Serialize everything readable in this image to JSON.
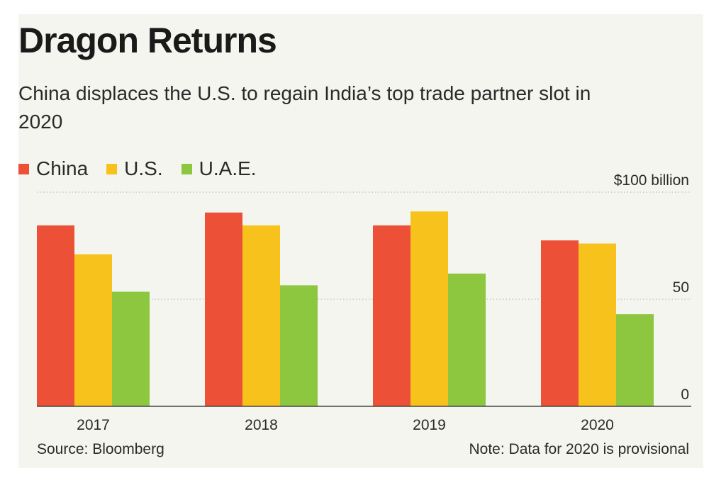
{
  "title": "Dragon Returns",
  "subtitle": "China displaces the U.S. to regain India’s top trade partner slot in 2020",
  "colors": {
    "china": "#ec5138",
    "us": "#f8c21c",
    "uae": "#8dc63f",
    "background": "#f5f5ef",
    "gridline": "#bdbdb5",
    "axis": "#444444"
  },
  "footer": {
    "source": "Source: Bloomberg",
    "note": "Note: Data for 2020 is provisional"
  },
  "chart_data": {
    "type": "bar",
    "title": "Dragon Returns",
    "subtitle": "China displaces the U.S. to regain India’s top trade partner slot in 2020",
    "categories": [
      "2017",
      "2018",
      "2019",
      "2020"
    ],
    "series": [
      {
        "name": "China",
        "values": [
          84.5,
          90.5,
          84.5,
          77.5
        ]
      },
      {
        "name": "U.S.",
        "values": [
          71,
          84.5,
          91,
          76
        ]
      },
      {
        "name": "U.A.E.",
        "values": [
          53.5,
          56.5,
          62,
          43
        ]
      }
    ],
    "y_ticks": [
      {
        "value": 0,
        "label": "0"
      },
      {
        "value": 50,
        "label": "50"
      },
      {
        "value": 100,
        "label": "$100 billion"
      }
    ],
    "ylim": [
      0,
      100
    ],
    "xlabel": "",
    "ylabel": "",
    "grid": true,
    "legend_position": "top-left"
  }
}
